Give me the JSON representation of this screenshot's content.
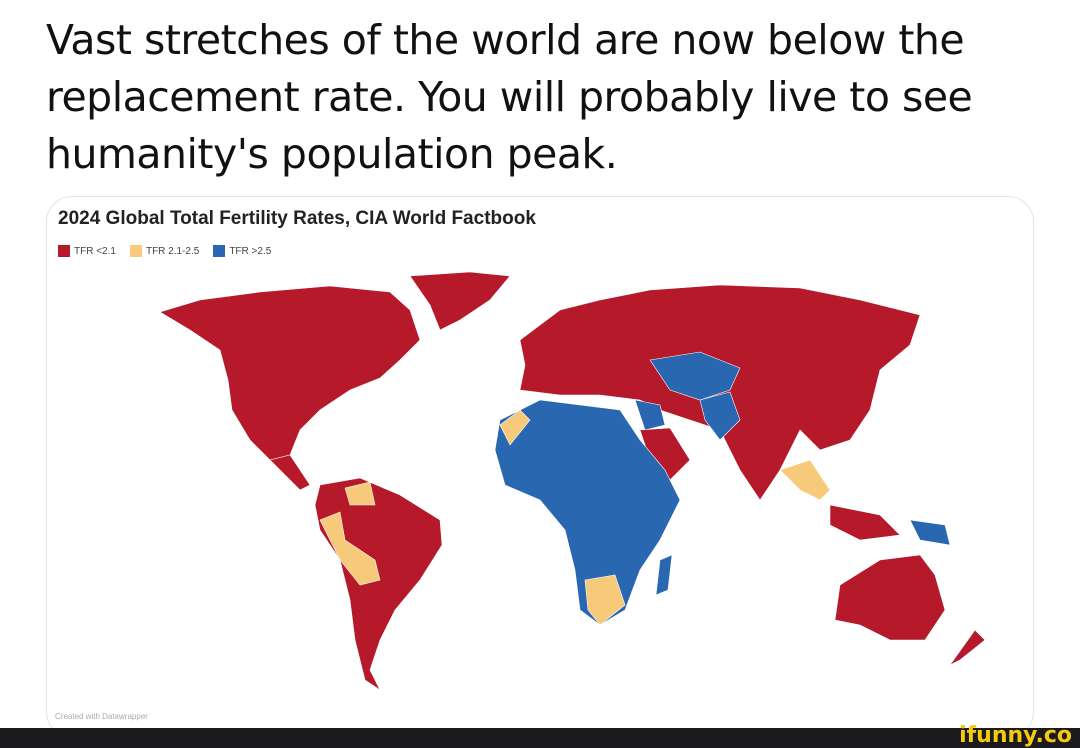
{
  "headline": "Vast stretches of the world are now below the replacement rate. You will probably live to see humanity's population peak.",
  "chart": {
    "title": "2024 Global Total Fertility Rates, CIA World Factbook",
    "legend": [
      {
        "label": "TFR <2.1",
        "color": "#b5192a"
      },
      {
        "label": "TFR 2.1-2.5",
        "color": "#f7c97a"
      },
      {
        "label": "TFR >2.5",
        "color": "#2a67b1"
      }
    ],
    "credit": "Created with Datawrapper"
  },
  "watermark": "ifunny.co"
}
